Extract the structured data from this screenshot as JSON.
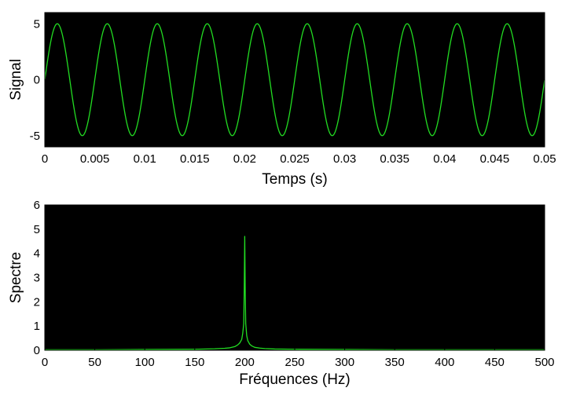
{
  "chart_data": [
    {
      "type": "line",
      "title": "",
      "xlabel": "Temps (s)",
      "ylabel": "Signal",
      "xlim": [
        0,
        0.05
      ],
      "ylim": [
        -6,
        6
      ],
      "xticks": [
        0,
        0.005,
        0.01,
        0.015,
        0.02,
        0.025,
        0.03,
        0.035,
        0.04,
        0.045,
        0.05
      ],
      "xtick_labels": [
        "0",
        "0.005",
        "0.01",
        "0.015",
        "0.02",
        "0.025",
        "0.03",
        "0.035",
        "0.04",
        "0.045",
        "0.05"
      ],
      "yticks": [
        5,
        0,
        -5
      ],
      "ytick_labels": [
        "5",
        "0",
        "-5"
      ],
      "background": "#000000",
      "grid": false,
      "series": [
        {
          "color": "#22dd22",
          "amplitude": 5,
          "frequency_hz": 200,
          "x": [
            0,
            0.00125,
            0.0025,
            0.00375,
            0.005,
            0.00625,
            0.0075,
            0.00875,
            0.01,
            0.01125,
            0.0125,
            0.01375,
            0.015,
            0.01625,
            0.0175,
            0.01875,
            0.02,
            0.02125,
            0.0225,
            0.02375,
            0.025,
            0.02625,
            0.0275,
            0.02875,
            0.03,
            0.03125,
            0.0325,
            0.03375,
            0.035,
            0.03625,
            0.0375,
            0.03875,
            0.04,
            0.04125,
            0.0425,
            0.04375,
            0.045,
            0.04625,
            0.0475,
            0.04875,
            0.05
          ],
          "values": [
            0,
            5,
            0,
            -5,
            0,
            5,
            0,
            -5,
            0,
            5,
            0,
            -5,
            0,
            5,
            0,
            -5,
            0,
            5,
            0,
            -5,
            0,
            5,
            0,
            -5,
            0,
            5,
            0,
            -5,
            0,
            5,
            0,
            -5,
            0,
            5,
            0,
            -5,
            0,
            5,
            0,
            -5,
            0
          ]
        }
      ]
    },
    {
      "type": "line",
      "title": "",
      "xlabel": "Fréquences (Hz)",
      "ylabel": "Spectre",
      "xlim": [
        0,
        500
      ],
      "ylim": [
        0,
        6
      ],
      "xticks": [
        0,
        50,
        100,
        150,
        200,
        250,
        300,
        350,
        400,
        450,
        500
      ],
      "xtick_labels": [
        "0",
        "50",
        "100",
        "150",
        "200",
        "250",
        "300",
        "350",
        "400",
        "450",
        "500"
      ],
      "yticks": [
        0,
        1,
        2,
        3,
        4,
        5,
        6
      ],
      "ytick_labels": [
        "0",
        "1",
        "2",
        "3",
        "4",
        "5",
        "6"
      ],
      "background": "#000000",
      "grid": false,
      "series": [
        {
          "color": "#22dd22",
          "x": [
            0,
            50,
            100,
            150,
            170,
            180,
            185,
            190,
            193,
            195,
            197,
            198,
            199,
            199.5,
            200,
            200.5,
            201,
            202,
            203,
            205,
            207,
            210,
            215,
            220,
            230,
            250,
            300,
            350,
            400,
            450,
            500
          ],
          "values": [
            0.02,
            0.02,
            0.03,
            0.04,
            0.06,
            0.08,
            0.1,
            0.15,
            0.22,
            0.3,
            0.45,
            0.7,
            1.1,
            2.5,
            4.7,
            2.4,
            1.1,
            0.6,
            0.4,
            0.25,
            0.18,
            0.12,
            0.09,
            0.07,
            0.05,
            0.04,
            0.03,
            0.02,
            0.02,
            0.02,
            0.02
          ]
        }
      ]
    }
  ]
}
